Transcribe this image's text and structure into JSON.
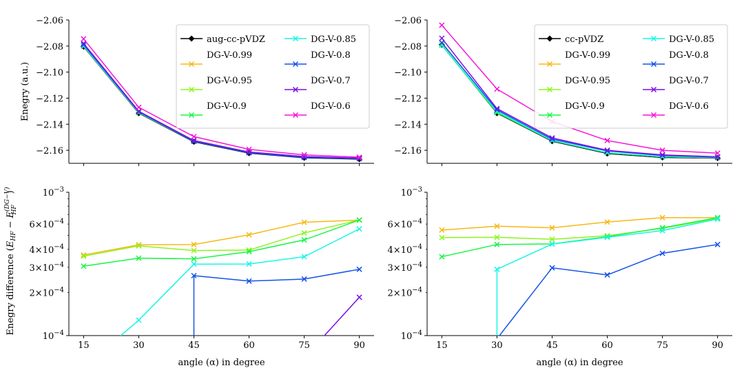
{
  "chart_data": [
    {
      "type": "line",
      "panel": "top-left",
      "x": [
        15,
        30,
        45,
        60,
        75,
        90
      ],
      "ylabel": "Enegry (a.u.)",
      "xlabel": "",
      "xlim": [
        11,
        94
      ],
      "ylim": [
        -2.17,
        -2.06
      ],
      "yticks": [
        -2.16,
        -2.14,
        -2.12,
        -2.1,
        -2.08,
        -2.06
      ],
      "ytick_labels": [
        "−2.16",
        "−2.14",
        "−2.12",
        "−2.10",
        "−2.08",
        "−2.06"
      ],
      "show_xtick_labels": false,
      "legend": "top-right",
      "legend_cols": 2,
      "series": [
        {
          "name": "aug-cc-pVDZ",
          "color": "#000000",
          "marker": "D",
          "values": [
            -2.0805,
            -2.1315,
            -2.1535,
            -2.1622,
            -2.1658,
            -2.1668
          ]
        },
        {
          "name": "DG-V-0.99",
          "color": "#f7b814",
          "marker": "x",
          "values": [
            -2.0802,
            -2.1311,
            -2.1531,
            -2.1617,
            -2.1652,
            -2.1662
          ]
        },
        {
          "name": "DG-V-0.95",
          "color": "#8cf51e",
          "marker": "x",
          "values": [
            -2.0801,
            -2.131,
            -2.153,
            -2.1617,
            -2.1652,
            -2.1662
          ]
        },
        {
          "name": "DG-V-0.9",
          "color": "#19f545",
          "marker": "x",
          "values": [
            -2.0801,
            -2.1311,
            -2.1531,
            -2.1618,
            -2.1653,
            -2.1662
          ]
        },
        {
          "name": "DG-V-0.85",
          "color": "#19f5e6",
          "marker": "x",
          "values": [
            -2.08,
            -2.1308,
            -2.1531,
            -2.1618,
            -2.1654,
            -2.1663
          ]
        },
        {
          "name": "DG-V-0.8",
          "color": "#1452e6",
          "marker": "x",
          "values": [
            -2.079,
            -2.1305,
            -2.1531,
            -2.1619,
            -2.1655,
            -2.1665
          ]
        },
        {
          "name": "DG-V-0.7",
          "color": "#7a0fe6",
          "marker": "x",
          "values": [
            -2.078,
            -2.13,
            -2.1525,
            -2.1613,
            -2.1648,
            -2.166
          ]
        },
        {
          "name": "DG-V-0.6",
          "color": "#f514d8",
          "marker": "x",
          "values": [
            -2.0745,
            -2.127,
            -2.1495,
            -2.1593,
            -2.1635,
            -2.1653
          ]
        }
      ]
    },
    {
      "type": "line",
      "panel": "top-right",
      "x": [
        15,
        30,
        45,
        60,
        75,
        90
      ],
      "ylabel": "",
      "xlabel": "",
      "xlim": [
        11,
        94
      ],
      "ylim": [
        -2.17,
        -2.06
      ],
      "yticks": [
        -2.16,
        -2.14,
        -2.12,
        -2.1,
        -2.08,
        -2.06
      ],
      "ytick_labels": [
        "−2.16",
        "−2.14",
        "−2.12",
        "−2.10",
        "−2.08",
        "−2.06"
      ],
      "show_xtick_labels": false,
      "legend": "top-right",
      "legend_cols": 2,
      "series": [
        {
          "name": "cc-pVDZ",
          "color": "#000000",
          "marker": "D",
          "values": [
            -2.079,
            -2.1315,
            -2.153,
            -2.1625,
            -2.1655,
            -2.166
          ]
        },
        {
          "name": "DG-V-0.99",
          "color": "#f7b814",
          "marker": "x",
          "values": [
            -2.079,
            -2.131,
            -2.1525,
            -2.1619,
            -2.165,
            -2.1656
          ]
        },
        {
          "name": "DG-V-0.95",
          "color": "#8cf51e",
          "marker": "x",
          "values": [
            -2.079,
            -2.131,
            -2.1525,
            -2.162,
            -2.165,
            -2.1656
          ]
        },
        {
          "name": "DG-V-0.9",
          "color": "#19f545",
          "marker": "x",
          "values": [
            -2.0795,
            -2.1311,
            -2.1526,
            -2.162,
            -2.165,
            -2.1656
          ]
        },
        {
          "name": "DG-V-0.85",
          "color": "#19f5e6",
          "marker": "x",
          "values": [
            -2.0795,
            -2.13,
            -2.1524,
            -2.1618,
            -2.1648,
            -2.1655
          ]
        },
        {
          "name": "DG-V-0.8",
          "color": "#1452e6",
          "marker": "x",
          "values": [
            -2.0775,
            -2.129,
            -2.1515,
            -2.1605,
            -2.164,
            -2.1652
          ]
        },
        {
          "name": "DG-V-0.7",
          "color": "#7a0fe6",
          "marker": "x",
          "values": [
            -2.074,
            -2.128,
            -2.1505,
            -2.16,
            -2.1635,
            -2.165
          ]
        },
        {
          "name": "DG-V-0.6",
          "color": "#f514d8",
          "marker": "x",
          "values": [
            -2.064,
            -2.113,
            -2.138,
            -2.1525,
            -2.16,
            -2.1622
          ]
        }
      ]
    },
    {
      "type": "line",
      "panel": "bottom-left",
      "x": [
        15,
        30,
        45,
        60,
        75,
        90
      ],
      "xlabel": "angle (α) in degree",
      "ylabel": "Enegry difference (E_HF − E_HF^(DG−V))",
      "ylabel_parts": {
        "main": "Enegry difference (",
        "e1": "E",
        "s1": "HF",
        "minus": " − ",
        "e2": "E",
        "s2": "HF",
        "sup": "(DG−V)",
        "close": ")"
      },
      "xlim": [
        11,
        94
      ],
      "yscale": "log",
      "ylim": [
        0.0001,
        0.001
      ],
      "ytick_values": [
        0.0001,
        0.0002,
        0.0003,
        0.0004,
        0.0006,
        0.001
      ],
      "ytick_mantissa": [
        "",
        "2",
        "3",
        "4",
        "6",
        ""
      ],
      "ytick_exponent": "−4",
      "ytick_exponent_top": "−3",
      "xticks": [
        15,
        30,
        45,
        60,
        75,
        90
      ],
      "xtick_labels": [
        "15",
        "30",
        "45",
        "60",
        "75",
        "90"
      ],
      "series": [
        {
          "name": "DG-V-0.99",
          "color": "#f7b814",
          "values": [
            0.000365,
            0.00043,
            0.000432,
            0.000505,
            0.000618,
            0.00064
          ]
        },
        {
          "name": "DG-V-0.95",
          "color": "#8cf51e",
          "values": [
            0.000358,
            0.000423,
            0.000392,
            0.000395,
            0.00052,
            0.00064
          ]
        },
        {
          "name": "DG-V-0.9",
          "color": "#19f545",
          "values": [
            0.000305,
            0.000347,
            0.000343,
            0.000385,
            0.000465,
            0.00064
          ]
        },
        {
          "name": "DG-V-0.85",
          "color": "#19f5e6",
          "values": [
            6e-05,
            0.000128,
            0.000315,
            0.000316,
            0.000355,
            0.000555
          ]
        },
        {
          "name": "DG-V-0.8",
          "color": "#1452e6",
          "values": [
            null,
            null,
            0.000262,
            0.00024,
            0.000248,
            0.00029
          ],
          "drop_at": 45
        },
        {
          "name": "DG-V-0.7",
          "color": "#7a0fe6",
          "values": [
            null,
            null,
            null,
            null,
            7e-05,
            0.000185
          ]
        }
      ]
    },
    {
      "type": "line",
      "panel": "bottom-right",
      "x": [
        15,
        30,
        45,
        60,
        75,
        90
      ],
      "xlabel": "angle (α) in degree",
      "ylabel": "",
      "xlim": [
        11,
        94
      ],
      "yscale": "log",
      "ylim": [
        0.0001,
        0.001
      ],
      "ytick_values": [
        0.0001,
        0.0002,
        0.0003,
        0.0004,
        0.0006,
        0.001
      ],
      "ytick_mantissa": [
        "",
        "2",
        "3",
        "4",
        "6",
        ""
      ],
      "ytick_exponent": "−4",
      "ytick_exponent_top": "−3",
      "xticks": [
        15,
        30,
        45,
        60,
        75,
        90
      ],
      "xtick_labels": [
        "15",
        "30",
        "45",
        "60",
        "75",
        "90"
      ],
      "series": [
        {
          "name": "DG-V-0.99",
          "color": "#f7b814",
          "values": [
            0.000545,
            0.00058,
            0.000565,
            0.00062,
            0.000665,
            0.000665
          ]
        },
        {
          "name": "DG-V-0.95",
          "color": "#8cf51e",
          "values": [
            0.000483,
            0.000485,
            0.00047,
            0.000497,
            0.00056,
            0.000655
          ]
        },
        {
          "name": "DG-V-0.9",
          "color": "#19f545",
          "values": [
            0.000355,
            0.000432,
            0.000436,
            0.00049,
            0.000565,
            0.000665
          ]
        },
        {
          "name": "DG-V-0.85",
          "color": "#19f5e6",
          "values": [
            null,
            0.00029,
            0.000435,
            0.000485,
            0.00054,
            0.00065
          ],
          "drop_at": 30
        },
        {
          "name": "DG-V-0.8",
          "color": "#1452e6",
          "values": [
            null,
            9.5e-05,
            0.000297,
            0.000265,
            0.000375,
            0.000432
          ]
        }
      ]
    }
  ]
}
